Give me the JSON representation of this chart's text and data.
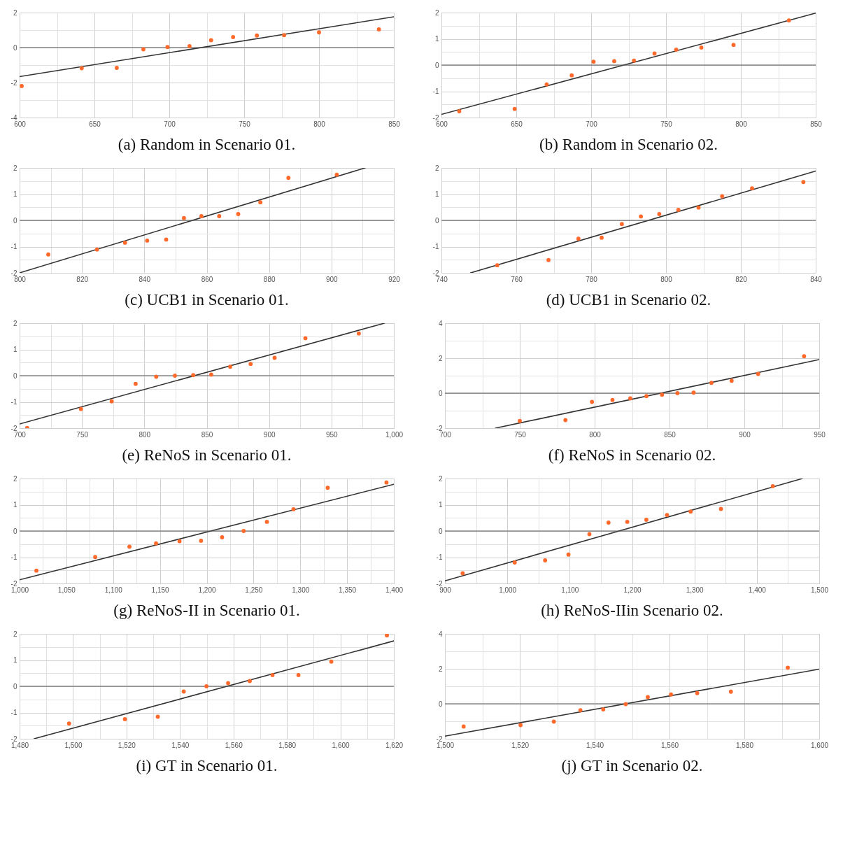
{
  "chart_data": [
    {
      "type": "scatter",
      "title": "(a) Random in Scenario 01.",
      "grid": true,
      "xlim": [
        600,
        850
      ],
      "ylim": [
        -4,
        2
      ],
      "xticks": [
        600,
        {
          "value": 625,
          "label": null
        },
        650,
        {
          "value": 675,
          "label": null
        },
        700,
        {
          "value": 725,
          "label": null
        },
        750,
        {
          "value": 775,
          "label": null
        },
        800,
        {
          "value": 825,
          "label": null
        },
        850
      ],
      "yticks": [
        -4,
        {
          "value": -3,
          "label": null
        },
        -2,
        {
          "value": -1,
          "label": null
        },
        0,
        {
          "value": 1,
          "label": null
        },
        2
      ],
      "ref_lines": [
        {
          "axis": "y",
          "value": 0,
          "color": "#555555"
        }
      ],
      "series": [
        {
          "type": "line",
          "color": "#333333",
          "x": [
            600,
            850
          ],
          "values": [
            -1.66,
            1.76
          ]
        },
        {
          "marker": "circle",
          "color": "#ff6a2c",
          "x": [
            601.4,
            641.5,
            664.9,
            682.7,
            698.8,
            713.5,
            727.9,
            742.6,
            758.5,
            776.7,
            800.0,
            840.0
          ],
          "values": [
            -2.2,
            -1.18,
            -1.16,
            -0.1,
            0.03,
            0.08,
            0.42,
            0.6,
            0.69,
            0.71,
            0.87,
            1.04
          ]
        }
      ]
    },
    {
      "type": "scatter",
      "title": "(b) Random in Scenario 02.",
      "grid": true,
      "xlim": [
        600,
        850
      ],
      "ylim": [
        -2,
        2
      ],
      "xticks": [
        600,
        {
          "value": 625,
          "label": null
        },
        650,
        {
          "value": 675,
          "label": null
        },
        700,
        {
          "value": 725,
          "label": null
        },
        750,
        {
          "value": 775,
          "label": null
        },
        800,
        {
          "value": 825,
          "label": null
        },
        850
      ],
      "yticks": [
        -2,
        {
          "value": -1.5,
          "label": null
        },
        -1,
        {
          "value": -0.5,
          "label": null
        },
        0,
        {
          "value": 0.5,
          "label": null
        },
        1,
        {
          "value": 1.5,
          "label": null
        },
        2
      ],
      "ref_lines": [
        {
          "axis": "y",
          "value": 0,
          "color": "#555555"
        }
      ],
      "series": [
        {
          "type": "line",
          "color": "#333333",
          "x": [
            600,
            850
          ],
          "values": [
            -1.88,
            1.98
          ]
        },
        {
          "marker": "circle",
          "color": "#ff6a2c",
          "x": [
            611.9,
            648.9,
            670.3,
            687.0,
            701.6,
            715.4,
            728.6,
            742.3,
            756.8,
            773.6,
            795.1,
            832.1
          ],
          "values": [
            -1.76,
            -1.67,
            -0.74,
            -0.39,
            0.13,
            0.15,
            0.17,
            0.44,
            0.59,
            0.67,
            0.77,
            1.7
          ]
        }
      ]
    },
    {
      "type": "scatter",
      "title": "(c) UCB1 in Scenario 01.",
      "grid": true,
      "xlim": [
        800,
        920
      ],
      "ylim": [
        -2,
        2
      ],
      "xticks": [
        800,
        {
          "value": 810,
          "label": null
        },
        820,
        {
          "value": 830,
          "label": null
        },
        840,
        {
          "value": 850,
          "label": null
        },
        860,
        {
          "value": 870,
          "label": null
        },
        880,
        {
          "value": 890,
          "label": null
        },
        900,
        {
          "value": 910,
          "label": null
        },
        920
      ],
      "yticks": [
        -2,
        {
          "value": -1.5,
          "label": null
        },
        -1,
        {
          "value": -0.5,
          "label": null
        },
        0,
        {
          "value": 0.5,
          "label": null
        },
        1,
        {
          "value": 1.5,
          "label": null
        },
        2
      ],
      "ref_lines": [
        {
          "axis": "y",
          "value": 0,
          "color": "#555555"
        }
      ],
      "series": [
        {
          "type": "line",
          "color": "#333333",
          "x": [
            800,
            910.8
          ],
          "values": [
            -2,
            2
          ]
        },
        {
          "marker": "circle",
          "color": "#ff6a2c",
          "x": [
            809.2,
            824.8,
            833.8,
            840.9,
            847.0,
            852.7,
            858.3,
            864.0,
            870.1,
            877.2,
            886.2,
            901.7
          ],
          "values": [
            -1.3,
            -1.11,
            -0.85,
            -0.77,
            -0.73,
            0.09,
            0.16,
            0.16,
            0.24,
            0.69,
            1.62,
            1.74
          ]
        }
      ]
    },
    {
      "type": "scatter",
      "title": "(d) UCB1 in Scenario 02.",
      "grid": true,
      "xlim": [
        740,
        840
      ],
      "ylim": [
        -2,
        2
      ],
      "xticks": [
        740,
        {
          "value": 750,
          "label": null
        },
        760,
        {
          "value": 770,
          "label": null
        },
        780,
        {
          "value": 790,
          "label": null
        },
        800,
        {
          "value": 810,
          "label": null
        },
        820,
        {
          "value": 830,
          "label": null
        },
        840
      ],
      "yticks": [
        -2,
        {
          "value": -1.5,
          "label": null
        },
        -1,
        {
          "value": -0.5,
          "label": null
        },
        0,
        {
          "value": 0.5,
          "label": null
        },
        1,
        {
          "value": 1.5,
          "label": null
        },
        2
      ],
      "ref_lines": [
        {
          "axis": "y",
          "value": 0,
          "color": "#555555"
        }
      ],
      "series": [
        {
          "type": "line",
          "color": "#333333",
          "x": [
            747.8,
            840
          ],
          "values": [
            -2,
            1.88
          ]
        },
        {
          "marker": "circle",
          "color": "#ff6a2c",
          "x": [
            754.9,
            768.6,
            776.6,
            782.8,
            788.2,
            793.3,
            798.2,
            803.3,
            808.7,
            815.0,
            823.0,
            836.7
          ],
          "values": [
            -1.71,
            -1.51,
            -0.7,
            -0.66,
            -0.14,
            0.15,
            0.24,
            0.4,
            0.49,
            0.92,
            1.22,
            1.46
          ]
        }
      ]
    },
    {
      "type": "scatter",
      "title": "(e) ReNoS in Scenario 01.",
      "grid": true,
      "xlim": [
        700,
        1000
      ],
      "ylim": [
        -2,
        2
      ],
      "xticks": [
        700,
        {
          "value": 725,
          "label": null
        },
        750,
        {
          "value": 775,
          "label": null
        },
        800,
        {
          "value": 825,
          "label": null
        },
        850,
        {
          "value": 875,
          "label": null
        },
        900,
        {
          "value": 925,
          "label": null
        },
        950,
        {
          "value": 975,
          "label": null
        },
        {
          "value": 1000,
          "label": "1,000"
        }
      ],
      "yticks": [
        -2,
        {
          "value": -1.5,
          "label": null
        },
        -1,
        {
          "value": -0.5,
          "label": null
        },
        0,
        {
          "value": 0.5,
          "label": null
        },
        1,
        {
          "value": 1.5,
          "label": null
        },
        2
      ],
      "ref_lines": [
        {
          "axis": "y",
          "value": 0,
          "color": "#555555"
        }
      ],
      "series": [
        {
          "type": "line",
          "color": "#333333",
          "x": [
            700,
            992.4
          ],
          "values": [
            -1.84,
            2
          ]
        },
        {
          "marker": "circle",
          "color": "#ff6a2c",
          "x": [
            706.1,
            749.2,
            773.8,
            793.0,
            809.5,
            824.5,
            839.2,
            853.6,
            868.8,
            885.2,
            904.4,
            929.1,
            971.9
          ],
          "values": [
            -1.99,
            -1.27,
            -0.98,
            -0.31,
            -0.04,
            0.0,
            0.02,
            0.04,
            0.34,
            0.45,
            0.68,
            1.43,
            1.61
          ]
        }
      ]
    },
    {
      "type": "scatter",
      "title": "(f) ReNoS in Scenario 02.",
      "grid": true,
      "xlim": [
        700,
        950
      ],
      "ylim": [
        -2,
        4
      ],
      "xticks": [
        700,
        {
          "value": 725,
          "label": null
        },
        750,
        {
          "value": 775,
          "label": null
        },
        800,
        {
          "value": 825,
          "label": null
        },
        850,
        {
          "value": 875,
          "label": null
        },
        900,
        {
          "value": 925,
          "label": null
        },
        950
      ],
      "yticks": [
        -2,
        {
          "value": -1,
          "label": null
        },
        0,
        {
          "value": 1,
          "label": null
        },
        2,
        {
          "value": 3,
          "label": null
        },
        4
      ],
      "ref_lines": [
        {
          "axis": "y",
          "value": 0,
          "color": "#555555"
        }
      ],
      "series": [
        {
          "type": "line",
          "color": "#333333",
          "x": [
            733.7,
            950
          ],
          "values": [
            -2,
            1.92
          ]
        },
        {
          "marker": "circle",
          "color": "#ff6a2c",
          "x": [
            750.0,
            780.5,
            798.2,
            811.9,
            823.8,
            834.6,
            845.0,
            855.3,
            866.1,
            878.0,
            891.5,
            909.2,
            939.9
          ],
          "values": [
            -1.59,
            -1.54,
            -0.5,
            -0.39,
            -0.3,
            -0.17,
            -0.09,
            0.0,
            0.03,
            0.59,
            0.71,
            1.1,
            2.11
          ]
        }
      ]
    },
    {
      "type": "scatter",
      "title": "(g) ReNoS-II in Scenario 01.",
      "grid": true,
      "xlim": [
        1000,
        1400
      ],
      "ylim": [
        -2,
        2
      ],
      "xticks": [
        {
          "value": 1000,
          "label": "1,000"
        },
        {
          "value": 1025,
          "label": null
        },
        {
          "value": 1050,
          "label": "1,050"
        },
        {
          "value": 1075,
          "label": null
        },
        {
          "value": 1100,
          "label": "1,100"
        },
        {
          "value": 1125,
          "label": null
        },
        {
          "value": 1150,
          "label": "1,150"
        },
        {
          "value": 1175,
          "label": null
        },
        {
          "value": 1200,
          "label": "1,200"
        },
        {
          "value": 1225,
          "label": null
        },
        {
          "value": 1250,
          "label": "1,250"
        },
        {
          "value": 1275,
          "label": null
        },
        {
          "value": 1300,
          "label": "1,300"
        },
        {
          "value": 1325,
          "label": null
        },
        {
          "value": 1350,
          "label": "1,350"
        },
        {
          "value": 1375,
          "label": null
        },
        {
          "value": 1400,
          "label": "1,400"
        }
      ],
      "yticks": [
        -2,
        {
          "value": -1.5,
          "label": null
        },
        -1,
        {
          "value": -0.5,
          "label": null
        },
        0,
        {
          "value": 0.5,
          "label": null
        },
        1,
        {
          "value": 1.5,
          "label": null
        },
        2
      ],
      "ref_lines": [
        {
          "axis": "y",
          "value": 0,
          "color": "#555555"
        }
      ],
      "series": [
        {
          "type": "line",
          "color": "#333333",
          "x": [
            1000,
            1400
          ],
          "values": [
            -1.86,
            1.78
          ]
        },
        {
          "marker": "circle",
          "color": "#ff6a2c",
          "x": [
            1018.0,
            1080.8,
            1117.4,
            1145.8,
            1170.9,
            1193.9,
            1216.4,
            1239.5,
            1264.3,
            1292.7,
            1329.3,
            1392.1
          ],
          "values": [
            -1.51,
            -0.99,
            -0.6,
            -0.47,
            -0.39,
            -0.37,
            -0.24,
            0.0,
            0.35,
            0.83,
            1.65,
            1.85
          ]
        }
      ]
    },
    {
      "type": "scatter",
      "title": "(h) ReNoS-IIin Scenario 02.",
      "grid": true,
      "xlim": [
        900,
        1500
      ],
      "ylim": [
        -2,
        2
      ],
      "xticks": [
        900,
        {
          "value": 950,
          "label": null
        },
        {
          "value": 1000,
          "label": "1,000"
        },
        {
          "value": 1050,
          "label": null
        },
        {
          "value": 1100,
          "label": "1,100"
        },
        {
          "value": 1150,
          "label": null
        },
        {
          "value": 1200,
          "label": "1,200"
        },
        {
          "value": 1250,
          "label": null
        },
        {
          "value": 1300,
          "label": "1,300"
        },
        {
          "value": 1350,
          "label": null
        },
        {
          "value": 1400,
          "label": "1,400"
        },
        {
          "value": 1450,
          "label": null
        },
        {
          "value": 1500,
          "label": "1,500"
        }
      ],
      "yticks": [
        -2,
        {
          "value": -1.5,
          "label": null
        },
        -1,
        {
          "value": -0.5,
          "label": null
        },
        0,
        {
          "value": 0.5,
          "label": null
        },
        1,
        {
          "value": 1.5,
          "label": null
        },
        2
      ],
      "ref_lines": [
        {
          "axis": "y",
          "value": 0,
          "color": "#555555"
        }
      ],
      "series": [
        {
          "type": "line",
          "color": "#333333",
          "x": [
            900,
            1473
          ],
          "values": [
            -1.9,
            2
          ]
        },
        {
          "marker": "circle",
          "color": "#ff6a2c",
          "x": [
            928.4,
            1011.9,
            1060.6,
            1098.0,
            1131.6,
            1162.2,
            1192.3,
            1222.9,
            1256.0,
            1293.9,
            1342.5,
            1425.6
          ],
          "values": [
            -1.61,
            -1.2,
            -1.12,
            -0.9,
            -0.12,
            0.32,
            0.35,
            0.43,
            0.61,
            0.74,
            0.84,
            1.71
          ]
        }
      ]
    },
    {
      "type": "scatter",
      "title": "(i) GT in Scenario 01.",
      "grid": true,
      "xlim": [
        1480,
        1620
      ],
      "ylim": [
        -2,
        2
      ],
      "xticks": [
        {
          "value": 1480,
          "label": "1,480"
        },
        {
          "value": 1490,
          "label": null
        },
        {
          "value": 1500,
          "label": "1,500"
        },
        {
          "value": 1510,
          "label": null
        },
        {
          "value": 1520,
          "label": "1,520"
        },
        {
          "value": 1530,
          "label": null
        },
        {
          "value": 1540,
          "label": "1,540"
        },
        {
          "value": 1550,
          "label": null
        },
        {
          "value": 1560,
          "label": "1,560"
        },
        {
          "value": 1570,
          "label": null
        },
        {
          "value": 1580,
          "label": "1,580"
        },
        {
          "value": 1590,
          "label": null
        },
        {
          "value": 1600,
          "label": "1,600"
        },
        {
          "value": 1610,
          "label": null
        },
        {
          "value": 1620,
          "label": "1,620"
        }
      ],
      "yticks": [
        -2,
        {
          "value": -1.5,
          "label": null
        },
        -1,
        {
          "value": -0.5,
          "label": null
        },
        0,
        {
          "value": 0.5,
          "label": null
        },
        1,
        {
          "value": 1.5,
          "label": null
        },
        2
      ],
      "ref_lines": [
        {
          "axis": "y",
          "value": 0,
          "color": "#555555"
        }
      ],
      "series": [
        {
          "type": "line",
          "color": "#333333",
          "x": [
            1485.4,
            1620
          ],
          "values": [
            -2,
            1.73
          ]
        },
        {
          "marker": "circle",
          "color": "#ff6a2c",
          "x": [
            1498.5,
            1519.4,
            1531.7,
            1541.4,
            1549.9,
            1558.0,
            1566.1,
            1574.6,
            1584.3,
            1596.6,
            1617.4
          ],
          "values": [
            -1.42,
            -1.25,
            -1.16,
            -0.2,
            0.0,
            0.12,
            0.2,
            0.43,
            0.43,
            0.94,
            1.94
          ]
        }
      ]
    },
    {
      "type": "scatter",
      "title": "(j) GT in Scenario 02.",
      "grid": true,
      "xlim": [
        1500,
        1600
      ],
      "ylim": [
        -2,
        4
      ],
      "xticks": [
        {
          "value": 1500,
          "label": "1,500"
        },
        {
          "value": 1510,
          "label": null
        },
        {
          "value": 1520,
          "label": "1,520"
        },
        {
          "value": 1530,
          "label": null
        },
        {
          "value": 1540,
          "label": "1,540"
        },
        {
          "value": 1550,
          "label": null
        },
        {
          "value": 1560,
          "label": "1,560"
        },
        {
          "value": 1570,
          "label": null
        },
        {
          "value": 1580,
          "label": "1,580"
        },
        {
          "value": 1590,
          "label": null
        },
        {
          "value": 1600,
          "label": "1,600"
        }
      ],
      "yticks": [
        -2,
        {
          "value": -1,
          "label": null
        },
        0,
        {
          "value": 1,
          "label": null
        },
        2,
        {
          "value": 3,
          "label": null
        },
        4
      ],
      "ref_lines": [
        {
          "axis": "y",
          "value": 0,
          "color": "#555555"
        }
      ],
      "series": [
        {
          "type": "line",
          "color": "#333333",
          "x": [
            1500,
            1600
          ],
          "values": [
            -1.85,
            1.98
          ]
        },
        {
          "marker": "circle",
          "color": "#ff6a2c",
          "x": [
            1505.0,
            1520.2,
            1529.1,
            1536.2,
            1542.3,
            1548.3,
            1554.2,
            1560.4,
            1567.4,
            1576.4,
            1591.6
          ],
          "values": [
            -1.3,
            -1.22,
            -1.02,
            -0.37,
            -0.32,
            -0.02,
            0.38,
            0.53,
            0.61,
            0.69,
            2.06
          ]
        }
      ]
    }
  ]
}
